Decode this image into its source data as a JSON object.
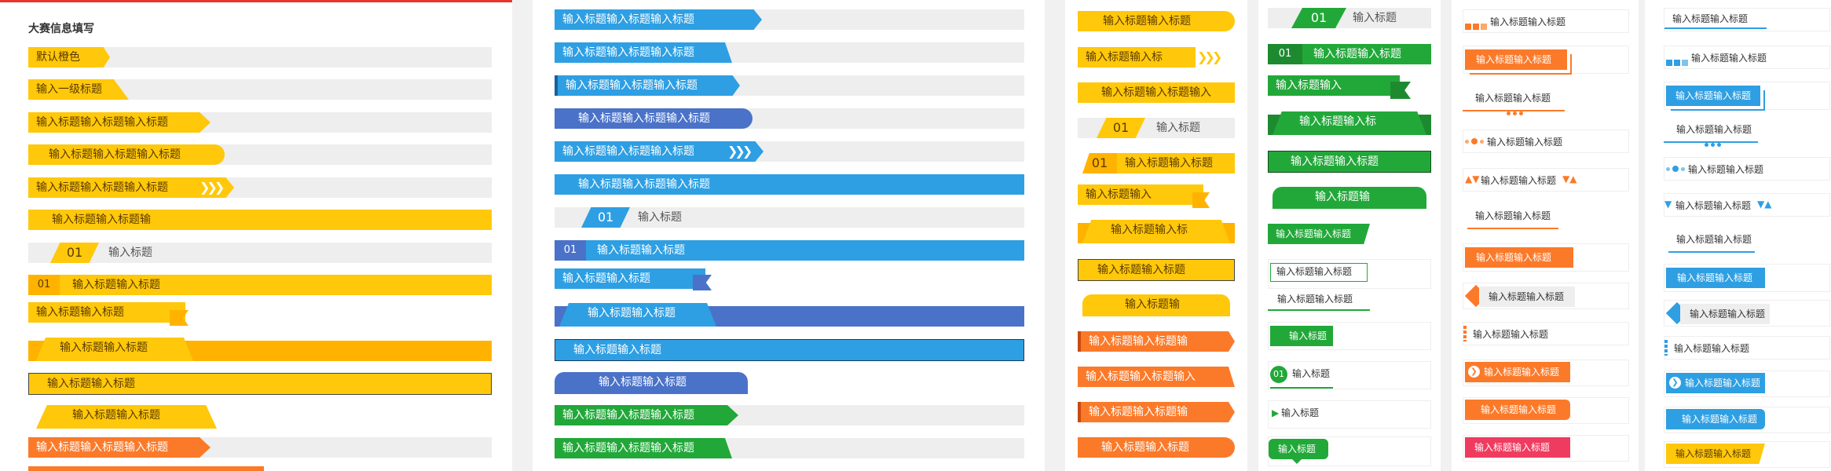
{
  "panel1": {
    "title": "大赛信息填写",
    "default_label": "默认橙色",
    "level1_label": "输入一级标题",
    "rows": [
      "输入标题输入标题输入标题",
      "输入标题输入标题输入标题",
      "输入标题输入标题输入标题",
      "输入标题输入标题输",
      "输入标题",
      "输入标题输入标题",
      "输入标题输入标题",
      "输入标题输入标题",
      "输入标题输入标题",
      "输入标题输入标题",
      "输入标题输入标题输入标题"
    ],
    "num": "01"
  },
  "panel2": {
    "rows": [
      "输入标题输入标题输入标题",
      "输入标题输入标题输入标题",
      "输入标题输入标题输入标题",
      "输入标题输入标题输入标题",
      "输入标题输入标题输入标题",
      "输入标题输入标题输入标题",
      "输入标题",
      "输入标题输入标题",
      "输入标题输入标题",
      "输入标题输入标题",
      "输入标题输入标题",
      "输入标题输入标题",
      "输入标题输入标题输入标题",
      "输入标题输入标题输入标题"
    ],
    "num": "01"
  },
  "panel3": {
    "rows": [
      "输入标题输入标题",
      "输入标题输入标",
      "输入标题输入标题输入",
      "输入标题",
      "输入标题输入标题",
      "输入标题输入",
      "输入标题输入标",
      "输入标题输入标题",
      "输入标题输",
      "输入标题输入标题输",
      "输入标题输入标题输入",
      "输入标题输入标题输",
      "输入标题输入标题"
    ],
    "num": "01"
  },
  "panel4": {
    "rows": [
      "输入标题",
      "输入标题输入标题",
      "输入标题输入",
      "输入标题输入标",
      "输入标题输入标题",
      "输入标题输",
      "输入标题输入标题",
      "输入标题输入标题",
      "输入标题输入标题",
      "输入标题",
      "输入标题",
      "输入标题",
      "输入标题"
    ],
    "num": "01"
  },
  "panel5": {
    "rows": [
      "输入标题输入标题",
      "输入标题输入标题",
      "输入标题输入标题",
      "输入标题输入标题",
      "输入标题输入标题",
      "输入标题输入标题",
      "输入标题输入标题",
      "输入标题输入标题",
      "输入标题输入标题",
      "输入标题输入标题",
      "输入标题输入标题",
      "输入标题输入标题"
    ]
  },
  "panel6": {
    "rows": [
      "输入标题输入标题",
      "输入标题输入标题",
      "输入标题输入标题",
      "输入标题输入标题",
      "输入标题输入标题",
      "输入标题输入标题",
      "输入标题输入标题",
      "输入标题输入标题",
      "输入标题输入标题",
      "输入标题输入标题",
      "输入标题输入标题",
      "输入标题输入标题",
      "输入标题输入标题"
    ]
  },
  "colors": {
    "yellow": "#ffc80a",
    "orange_yellow": "#ffb300",
    "blue": "#2e9fe3",
    "indigo": "#4a72c8",
    "green": "#22a839",
    "orange": "#fb7a2a",
    "red": "#e8342c",
    "pink": "#ef3b5f"
  }
}
